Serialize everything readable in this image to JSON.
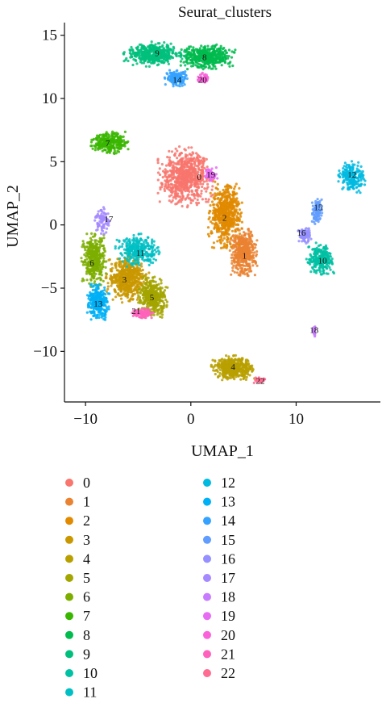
{
  "chart_data": {
    "type": "scatter",
    "title": "Seurat_clusters",
    "xlabel": "UMAP_1",
    "ylabel": "UMAP_2",
    "xlim": [
      -12,
      18
    ],
    "ylim": [
      -14,
      16
    ],
    "xticks": [
      -10,
      0,
      10
    ],
    "yticks": [
      -10,
      -5,
      0,
      5,
      10,
      15
    ],
    "grid": false,
    "legend_position": "bottom",
    "series": [
      {
        "name": "0",
        "color": "#F8766D",
        "center": [
          -0.5,
          3.8
        ],
        "spread": [
          2.4,
          2.2
        ],
        "n": 700,
        "label_pos": [
          0.8,
          3.8
        ]
      },
      {
        "name": "1",
        "color": "#EA8331",
        "center": [
          5.0,
          -2.2
        ],
        "spread": [
          1.2,
          1.8
        ],
        "n": 450,
        "label_pos": [
          5.1,
          -2.4
        ]
      },
      {
        "name": "2",
        "color": "#E18A00",
        "center": [
          3.3,
          0.8
        ],
        "spread": [
          1.5,
          2.4
        ],
        "n": 550,
        "label_pos": [
          3.2,
          0.6
        ]
      },
      {
        "name": "3",
        "color": "#C99800",
        "center": [
          -6.0,
          -4.2
        ],
        "spread": [
          1.9,
          1.8
        ],
        "n": 550,
        "label_pos": [
          -6.3,
          -4.3
        ]
      },
      {
        "name": "4",
        "color": "#B8A000",
        "center": [
          4.0,
          -11.3
        ],
        "spread": [
          1.9,
          0.9
        ],
        "n": 450,
        "label_pos": [
          4.0,
          -11.2
        ]
      },
      {
        "name": "5",
        "color": "#A3A500",
        "center": [
          -3.6,
          -5.7
        ],
        "spread": [
          1.3,
          1.5
        ],
        "n": 400,
        "label_pos": [
          -3.7,
          -5.7
        ]
      },
      {
        "name": "6",
        "color": "#7CAE00",
        "center": [
          -9.2,
          -2.8
        ],
        "spread": [
          1.1,
          2.0
        ],
        "n": 380,
        "label_pos": [
          -9.4,
          -3.0
        ]
      },
      {
        "name": "7",
        "color": "#39B600",
        "center": [
          -7.7,
          6.5
        ],
        "spread": [
          1.7,
          0.8
        ],
        "n": 280,
        "label_pos": [
          -7.9,
          6.5
        ]
      },
      {
        "name": "8",
        "color": "#00BB4E",
        "center": [
          1.5,
          13.3
        ],
        "spread": [
          2.5,
          0.9
        ],
        "n": 450,
        "label_pos": [
          1.3,
          13.3
        ]
      },
      {
        "name": "9",
        "color": "#00BF7D",
        "center": [
          -3.5,
          13.5
        ],
        "spread": [
          2.7,
          0.9
        ],
        "n": 450,
        "label_pos": [
          -3.2,
          13.6
        ]
      },
      {
        "name": "10",
        "color": "#00C1A3",
        "center": [
          12.3,
          -2.7
        ],
        "spread": [
          1.2,
          1.2
        ],
        "n": 260,
        "label_pos": [
          12.5,
          -2.8
        ]
      },
      {
        "name": "11",
        "color": "#00BFC4",
        "center": [
          -5.0,
          -2.0
        ],
        "spread": [
          2.0,
          1.2
        ],
        "n": 300,
        "label_pos": [
          -4.8,
          -2.2
        ]
      },
      {
        "name": "12",
        "color": "#00BAE0",
        "center": [
          15.3,
          3.8
        ],
        "spread": [
          1.2,
          1.2
        ],
        "n": 200,
        "label_pos": [
          15.3,
          4.0
        ]
      },
      {
        "name": "13",
        "color": "#00B0F6",
        "center": [
          -8.8,
          -6.1
        ],
        "spread": [
          1.0,
          1.3
        ],
        "n": 300,
        "label_pos": [
          -8.8,
          -6.2
        ]
      },
      {
        "name": "14",
        "color": "#35A2FF",
        "center": [
          -1.4,
          11.6
        ],
        "spread": [
          1.0,
          0.6
        ],
        "n": 180,
        "label_pos": [
          -1.3,
          11.5
        ]
      },
      {
        "name": "15",
        "color": "#619CFF",
        "center": [
          12.0,
          1.0
        ],
        "spread": [
          0.5,
          1.0
        ],
        "n": 110,
        "label_pos": [
          12.1,
          1.4
        ]
      },
      {
        "name": "16",
        "color": "#9590FF",
        "center": [
          10.8,
          -0.8
        ],
        "spread": [
          0.6,
          0.6
        ],
        "n": 90,
        "label_pos": [
          10.5,
          -0.6
        ]
      },
      {
        "name": "17",
        "color": "#A58AFF",
        "center": [
          -8.4,
          0.3
        ],
        "spread": [
          0.7,
          1.0
        ],
        "n": 90,
        "label_pos": [
          -7.8,
          0.5
        ]
      },
      {
        "name": "18",
        "color": "#C77CFF",
        "center": [
          11.7,
          -8.4
        ],
        "spread": [
          0.2,
          0.4
        ],
        "n": 25,
        "label_pos": [
          11.7,
          -8.3
        ]
      },
      {
        "name": "19",
        "color": "#E76BF3",
        "center": [
          1.9,
          4.0
        ],
        "spread": [
          0.6,
          0.5
        ],
        "n": 60,
        "label_pos": [
          1.9,
          4.0
        ]
      },
      {
        "name": "20",
        "color": "#FA62DB",
        "center": [
          1.2,
          11.6
        ],
        "spread": [
          0.5,
          0.4
        ],
        "n": 60,
        "label_pos": [
          1.1,
          11.5
        ]
      },
      {
        "name": "21",
        "color": "#FF62BC",
        "center": [
          -4.6,
          -7.0
        ],
        "spread": [
          1.0,
          0.4
        ],
        "n": 90,
        "label_pos": [
          -5.2,
          -6.8
        ]
      },
      {
        "name": "22",
        "color": "#FF6C91",
        "center": [
          6.5,
          -12.3
        ],
        "spread": [
          0.5,
          0.25
        ],
        "n": 40,
        "label_pos": [
          6.6,
          -12.3
        ]
      }
    ]
  }
}
